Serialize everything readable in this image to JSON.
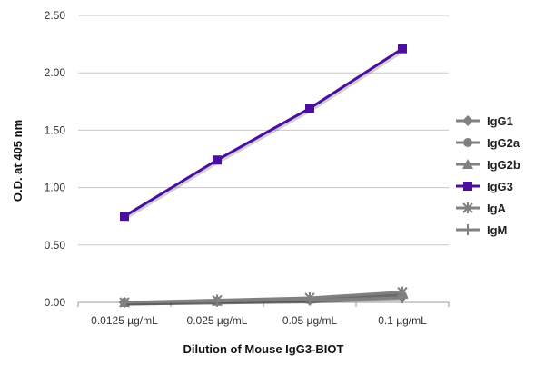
{
  "chart_data": {
    "type": "line",
    "categories": [
      "0.0125 µg/mL",
      "0.025 µg/mL",
      "0.05 µg/mL",
      "0.1 µg/mL"
    ],
    "ylabel": "O.D. at 405 nm",
    "xlabel": "Dilution of Mouse IgG3-BIOT",
    "ylim": [
      0,
      2.5
    ],
    "yticks": [
      "0.00",
      "0.50",
      "1.00",
      "1.50",
      "2.00",
      "2.50"
    ],
    "grid": true,
    "legend_position": "right",
    "series": [
      {
        "name": "IgG1",
        "marker": "diamond",
        "color": "#808080",
        "values": [
          0.0,
          0.01,
          0.02,
          0.05
        ]
      },
      {
        "name": "IgG2a",
        "marker": "circle",
        "color": "#808080",
        "values": [
          0.0,
          0.01,
          0.02,
          0.06
        ]
      },
      {
        "name": "IgG2b",
        "marker": "triangle",
        "color": "#808080",
        "values": [
          0.0,
          0.01,
          0.03,
          0.07
        ]
      },
      {
        "name": "IgG3",
        "marker": "square",
        "color": "#4b0fa0",
        "values": [
          0.75,
          1.24,
          1.69,
          2.21
        ]
      },
      {
        "name": "IgA",
        "marker": "star",
        "color": "#808080",
        "values": [
          0.0,
          0.02,
          0.04,
          0.09
        ]
      },
      {
        "name": "IgM",
        "marker": "plus",
        "color": "#808080",
        "values": [
          0.0,
          0.01,
          0.02,
          0.04
        ]
      }
    ]
  }
}
